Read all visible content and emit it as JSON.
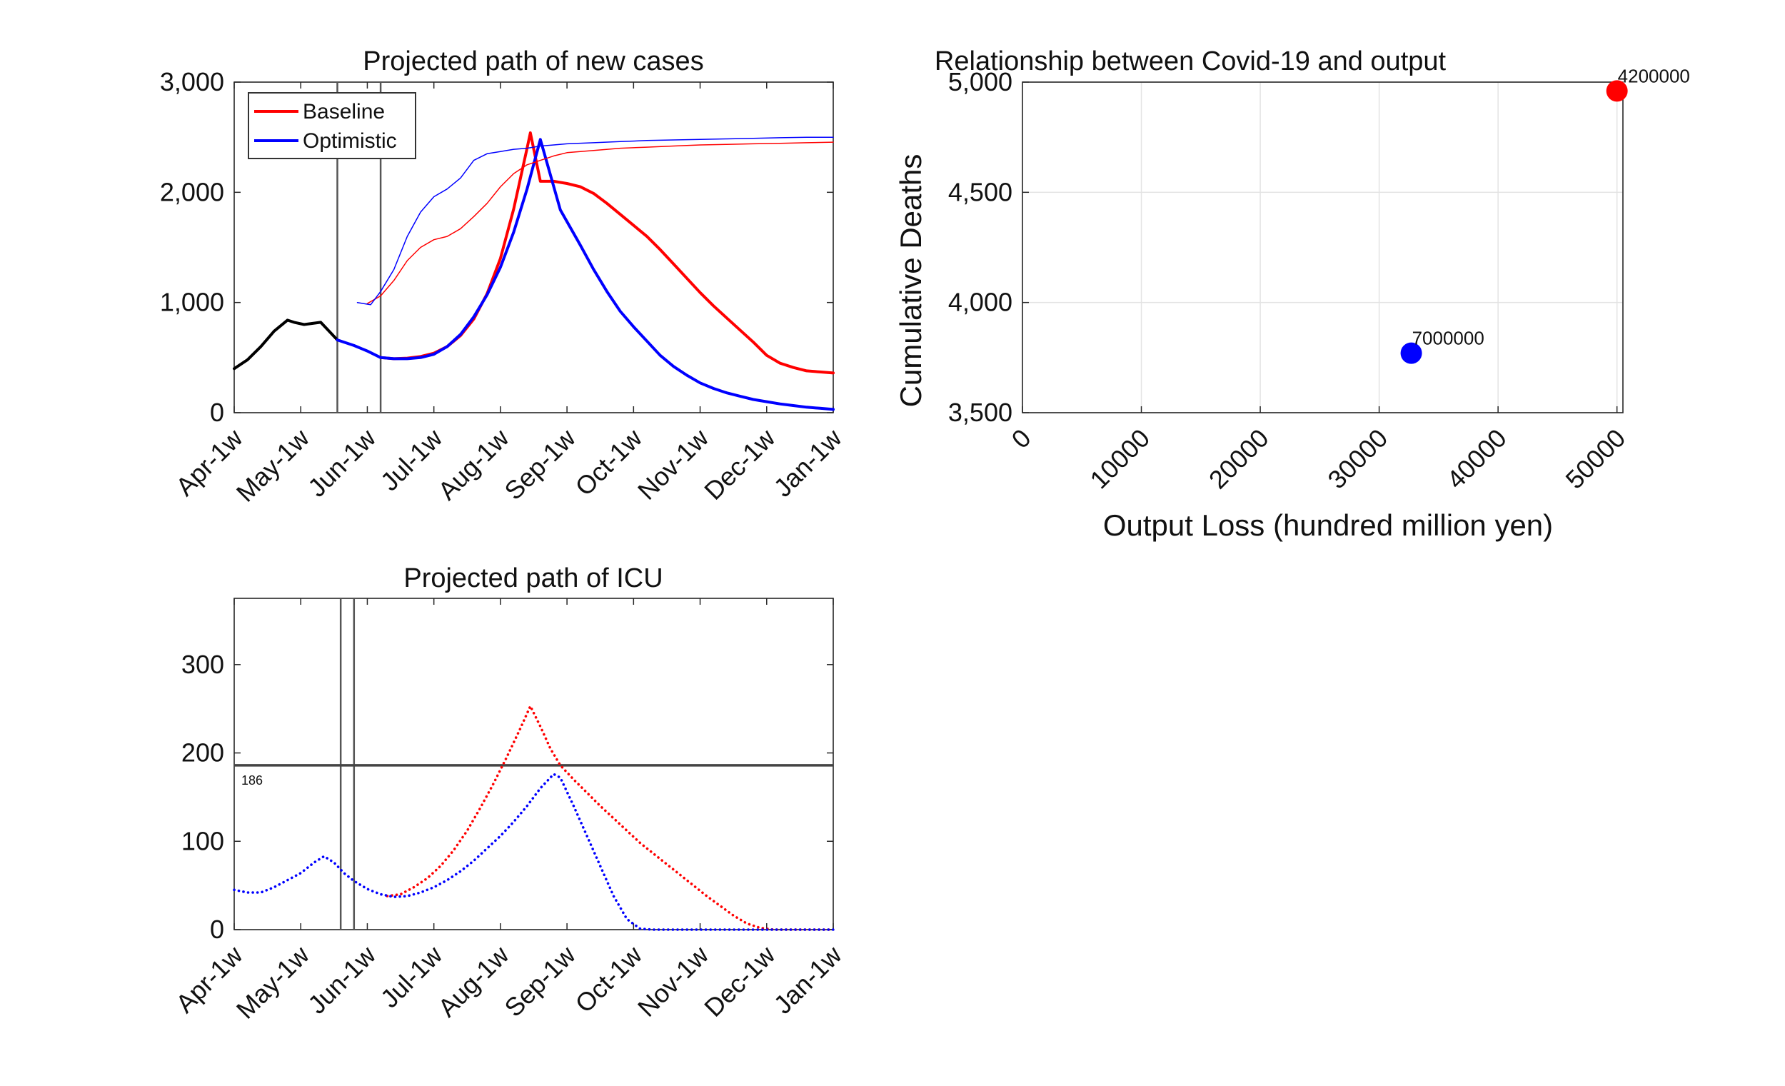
{
  "chart_data": [
    {
      "id": "cases",
      "type": "line",
      "title": "Projected path of new cases",
      "xlabel": "",
      "ylabel": "",
      "x_tick_labels": [
        "Apr-1w",
        "May-1w",
        "Jun-1w",
        "Jul-1w",
        "Aug-1w",
        "Sep-1w",
        "Oct-1w",
        "Nov-1w",
        "Dec-1w",
        "Jan-1w"
      ],
      "y_ticks": [
        0,
        1000,
        2000,
        3000
      ],
      "y_tick_labels": [
        "0",
        "1,000",
        "2,000",
        "3,000"
      ],
      "xlim": [
        0,
        9
      ],
      "ylim": [
        0,
        3000
      ],
      "grid": false,
      "legend": {
        "position": "top-left",
        "entries": [
          "Baseline",
          "Optimistic"
        ]
      },
      "vlines": [
        1.55,
        2.2
      ],
      "series": [
        {
          "name": "",
          "color": "#000000",
          "style": "solid",
          "width": "thick",
          "x": [
            0,
            0.2,
            0.4,
            0.6,
            0.8,
            0.9,
            1.05,
            1.3,
            1.55
          ],
          "y": [
            400,
            480,
            600,
            740,
            840,
            820,
            800,
            820,
            660
          ]
        },
        {
          "name": "Baseline",
          "color": "#ff0000",
          "style": "solid",
          "width": "thick",
          "x": [
            2.2,
            2.4,
            2.6,
            2.8,
            3.0,
            3.2,
            3.4,
            3.6,
            3.8,
            4.0,
            4.2,
            4.4,
            4.45,
            4.6,
            4.8,
            5.0,
            5.2,
            5.4,
            5.6,
            5.8,
            6.0,
            6.2,
            6.4,
            6.6,
            6.8,
            7.0,
            7.2,
            7.4,
            7.6,
            7.8,
            8.0,
            8.2,
            8.4,
            8.6,
            8.8,
            9.0
          ],
          "y": [
            500,
            490,
            495,
            510,
            540,
            600,
            700,
            850,
            1080,
            1400,
            1850,
            2400,
            2540,
            2100,
            2100,
            2080,
            2050,
            1990,
            1900,
            1800,
            1700,
            1600,
            1480,
            1350,
            1220,
            1090,
            970,
            860,
            750,
            640,
            520,
            450,
            410,
            380,
            370,
            360
          ]
        },
        {
          "name": "Optimistic",
          "color": "#0000ff",
          "style": "solid",
          "width": "thick",
          "x": [
            1.55,
            1.8,
            2.0,
            2.2,
            2.4,
            2.6,
            2.8,
            3.0,
            3.2,
            3.4,
            3.6,
            3.8,
            4.0,
            4.2,
            4.4,
            4.6,
            4.9,
            5.2,
            5.4,
            5.6,
            5.8,
            6.0,
            6.2,
            6.4,
            6.6,
            6.8,
            7.0,
            7.2,
            7.4,
            7.6,
            7.8,
            8.0,
            8.2,
            8.4,
            8.6,
            8.8,
            9.0
          ],
          "y": [
            660,
            610,
            560,
            500,
            490,
            490,
            500,
            530,
            600,
            710,
            870,
            1070,
            1320,
            1640,
            2030,
            2480,
            1840,
            1520,
            1300,
            1100,
            920,
            780,
            650,
            520,
            420,
            340,
            270,
            220,
            180,
            150,
            120,
            100,
            80,
            65,
            50,
            40,
            30
          ]
        },
        {
          "name": "",
          "color": "#ff0000",
          "style": "solid",
          "width": "thin",
          "x": [
            2.0,
            2.2,
            2.4,
            2.6,
            2.8,
            3.0,
            3.2,
            3.4,
            3.6,
            3.8,
            4.0,
            4.2,
            4.4,
            4.6,
            4.8,
            5.0,
            5.4,
            5.8,
            6.2,
            6.6,
            7.0,
            7.4,
            7.8,
            8.2,
            8.6,
            9.0
          ],
          "y": [
            990,
            1060,
            1200,
            1380,
            1500,
            1570,
            1600,
            1670,
            1780,
            1900,
            2050,
            2170,
            2250,
            2290,
            2330,
            2360,
            2380,
            2400,
            2410,
            2420,
            2430,
            2435,
            2440,
            2445,
            2450,
            2455
          ]
        },
        {
          "name": "",
          "color": "#0000ff",
          "style": "solid",
          "width": "thin",
          "x": [
            1.85,
            2.05,
            2.2,
            2.4,
            2.6,
            2.8,
            3.0,
            3.2,
            3.4,
            3.6,
            3.8,
            4.0,
            4.2,
            4.4,
            4.6,
            4.8,
            5.0,
            5.4,
            5.8,
            6.2,
            6.6,
            7.0,
            7.4,
            7.8,
            8.2,
            8.6,
            9.0
          ],
          "y": [
            1000,
            980,
            1100,
            1300,
            1600,
            1820,
            1960,
            2030,
            2130,
            2290,
            2350,
            2370,
            2390,
            2400,
            2420,
            2430,
            2440,
            2450,
            2460,
            2470,
            2475,
            2480,
            2485,
            2490,
            2495,
            2500,
            2500
          ]
        }
      ]
    },
    {
      "id": "icu",
      "type": "line",
      "title": "Projected path of ICU",
      "xlabel": "",
      "ylabel": "",
      "x_tick_labels": [
        "Apr-1w",
        "May-1w",
        "Jun-1w",
        "Jul-1w",
        "Aug-1w",
        "Sep-1w",
        "Oct-1w",
        "Nov-1w",
        "Dec-1w",
        "Jan-1w"
      ],
      "y_ticks": [
        0,
        100,
        200,
        300
      ],
      "y_tick_labels": [
        "0",
        "100",
        "200",
        "300"
      ],
      "xlim": [
        0,
        9
      ],
      "ylim": [
        0,
        375
      ],
      "grid": false,
      "vlines": [
        1.6,
        1.8
      ],
      "hline": {
        "value": 186,
        "label": "186"
      },
      "series": [
        {
          "name": "",
          "color": "#ff0000",
          "style": "dotted",
          "x": [
            2.3,
            2.5,
            2.7,
            2.9,
            3.1,
            3.3,
            3.5,
            3.7,
            3.9,
            4.1,
            4.3,
            4.45,
            4.6,
            4.75,
            4.9,
            5.1,
            5.3,
            5.5,
            5.7,
            5.9,
            6.1,
            6.3,
            6.5,
            6.7,
            6.9,
            7.1,
            7.3,
            7.5,
            7.7,
            7.9,
            8.1,
            8.3,
            8.5,
            8.7,
            9.0
          ],
          "y": [
            38,
            40,
            48,
            58,
            72,
            90,
            112,
            138,
            166,
            196,
            228,
            253,
            230,
            205,
            186,
            170,
            155,
            140,
            126,
            112,
            98,
            86,
            74,
            62,
            50,
            38,
            27,
            16,
            7,
            2,
            0,
            0,
            0,
            0,
            0
          ]
        },
        {
          "name": "",
          "color": "#0000ff",
          "style": "dotted",
          "x": [
            0,
            0.2,
            0.4,
            0.6,
            0.8,
            1.0,
            1.2,
            1.35,
            1.5,
            1.65,
            1.8,
            2.0,
            2.2,
            2.4,
            2.6,
            2.8,
            3.0,
            3.2,
            3.4,
            3.6,
            3.8,
            4.0,
            4.2,
            4.4,
            4.6,
            4.8,
            4.9,
            5.1,
            5.3,
            5.5,
            5.7,
            5.9,
            6.1,
            6.3,
            6.5,
            7.0,
            7.5,
            8.0,
            8.5,
            9.0
          ],
          "y": [
            45,
            42,
            42,
            48,
            56,
            64,
            76,
            83,
            76,
            64,
            55,
            46,
            40,
            37,
            38,
            42,
            48,
            56,
            66,
            78,
            92,
            106,
            122,
            140,
            160,
            176,
            172,
            140,
            106,
            72,
            38,
            12,
            1,
            0,
            0,
            0,
            0,
            0,
            0,
            0
          ]
        }
      ]
    },
    {
      "id": "tradeoff",
      "type": "scatter",
      "title": "Relationship between Covid-19 and output",
      "xlabel": "Output Loss (hundred million yen)",
      "ylabel": "Cumulative Deaths",
      "x_ticks": [
        0,
        10000,
        20000,
        30000,
        40000,
        50000
      ],
      "x_tick_labels": [
        "0",
        "10000",
        "20000",
        "30000",
        "40000",
        "50000"
      ],
      "y_ticks": [
        3500,
        4000,
        4500,
        5000
      ],
      "y_tick_labels": [
        "3,500",
        "4,000",
        "4,500",
        "5,000"
      ],
      "xlim": [
        0,
        50500
      ],
      "ylim": [
        3500,
        5000
      ],
      "grid": true,
      "points": [
        {
          "x": 32700,
          "y": 3770,
          "color": "#0000ff",
          "label": "7000000"
        },
        {
          "x": 50000,
          "y": 4960,
          "color": "#ff0000",
          "label": "4200000"
        }
      ]
    }
  ]
}
